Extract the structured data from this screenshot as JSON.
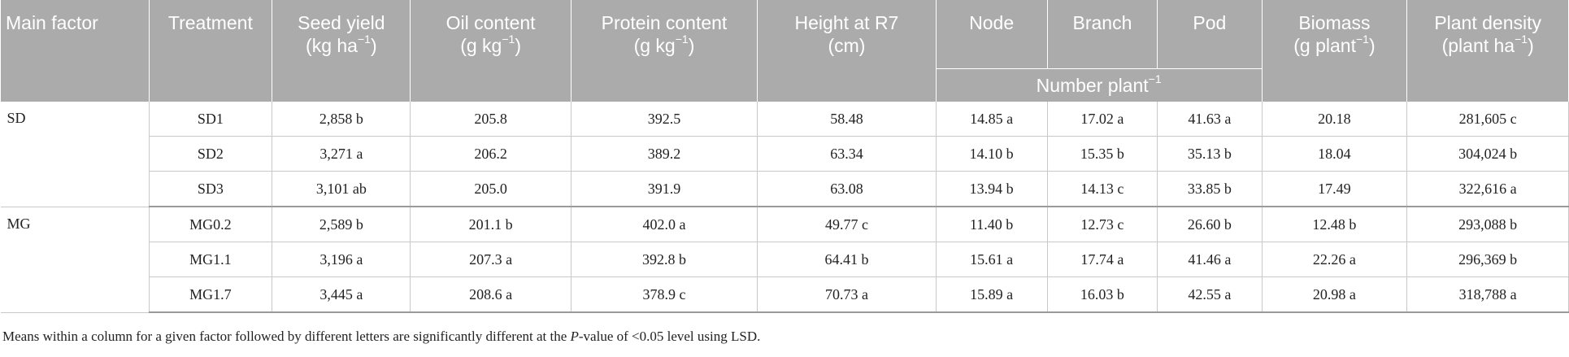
{
  "headers": {
    "main_factor": "Main factor",
    "treatment": "Treatment",
    "seed_yield": "Seed yield",
    "seed_yield_unit": "(kg ha",
    "oil_content": "Oil content",
    "oil_content_unit": "(g kg",
    "protein_content": "Protein content",
    "protein_content_unit": "(g kg",
    "height": "Height at R7",
    "height_unit": "(cm)",
    "node": "Node",
    "branch": "Branch",
    "pod": "Pod",
    "number_plant": "Number plant",
    "biomass": "Biomass",
    "biomass_unit": "(g plant",
    "plant_density": "Plant density",
    "plant_density_unit": "(plant ha",
    "exp_minus_one": "−1",
    "close_paren": ")"
  },
  "groups": [
    {
      "factor": "SD",
      "rows": [
        {
          "treatment": "SD1",
          "seed_yield": "2,858 b",
          "oil": "205.8",
          "protein": "392.5",
          "height": "58.48",
          "node": "14.85 a",
          "branch": "17.02 a",
          "pod": "41.63 a",
          "biomass": "20.18",
          "density": "281,605 c"
        },
        {
          "treatment": "SD2",
          "seed_yield": "3,271 a",
          "oil": "206.2",
          "protein": "389.2",
          "height": "63.34",
          "node": "14.10 b",
          "branch": "15.35 b",
          "pod": "35.13 b",
          "biomass": "18.04",
          "density": "304,024 b"
        },
        {
          "treatment": "SD3",
          "seed_yield": "3,101 ab",
          "oil": "205.0",
          "protein": "391.9",
          "height": "63.08",
          "node": "13.94 b",
          "branch": "14.13 c",
          "pod": "33.85 b",
          "biomass": "17.49",
          "density": "322,616 a"
        }
      ]
    },
    {
      "factor": "MG",
      "rows": [
        {
          "treatment": "MG0.2",
          "seed_yield": "2,589 b",
          "oil": "201.1 b",
          "protein": "402.0 a",
          "height": "49.77 c",
          "node": "11.40 b",
          "branch": "12.73 c",
          "pod": "26.60 b",
          "biomass": "12.48 b",
          "density": "293,088 b"
        },
        {
          "treatment": "MG1.1",
          "seed_yield": "3,196 a",
          "oil": "207.3 a",
          "protein": "392.8 b",
          "height": "64.41 b",
          "node": "15.61 a",
          "branch": "17.74 a",
          "pod": "41.46 a",
          "biomass": "22.26 a",
          "density": "296,369 b"
        },
        {
          "treatment": "MG1.7",
          "seed_yield": "3,445 a",
          "oil": "208.6 a",
          "protein": "378.9 c",
          "height": "70.73 a",
          "node": "15.89 a",
          "branch": "16.03 b",
          "pod": "42.55 a",
          "biomass": "20.98 a",
          "density": "318,788 a"
        }
      ]
    }
  ],
  "footnote": {
    "before": "Means within a column for a given factor followed by different letters are significantly different at the ",
    "p_label": "P",
    "after": "-value of <0.05 level using LSD."
  }
}
